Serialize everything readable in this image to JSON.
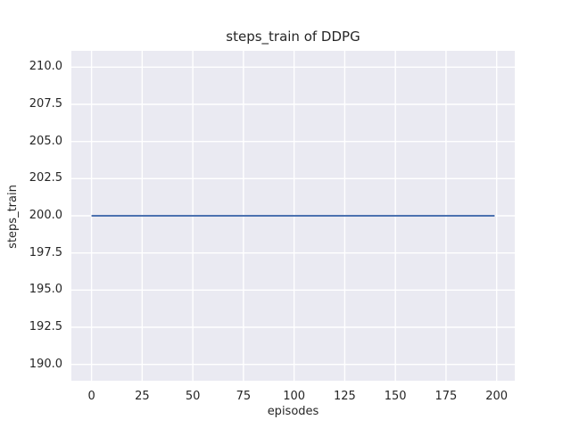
{
  "chart_data": {
    "type": "line",
    "title": "steps_train of DDPG",
    "xlabel": "episodes",
    "ylabel": "steps_train",
    "x_range": [
      -9.95,
      208.95
    ],
    "y_range": [
      188.9,
      211.1
    ],
    "xticks": {
      "values": [
        0,
        25,
        50,
        75,
        100,
        125,
        150,
        175,
        200
      ],
      "labels": [
        "0",
        "25",
        "50",
        "75",
        "100",
        "125",
        "150",
        "175",
        "200"
      ]
    },
    "yticks": {
      "values": [
        190.0,
        192.5,
        195.0,
        197.5,
        200.0,
        202.5,
        205.0,
        207.5,
        210.0
      ],
      "labels": [
        "190.0",
        "192.5",
        "195.0",
        "197.5",
        "200.0",
        "202.5",
        "205.0",
        "207.5",
        "210.0"
      ]
    },
    "grid": true,
    "legend": false,
    "style": {
      "figure_background": "#ffffff",
      "axes_background": "#eaeaf2",
      "grid_color": "#ffffff",
      "text_color": "#262626",
      "line_color": "#4c72b0"
    },
    "series": [
      {
        "name": "steps_train",
        "color": "#4c72b0",
        "x": [
          0,
          199
        ],
        "y": [
          200,
          200
        ],
        "description": "constant value 200 for every episode from 0 to 199"
      }
    ]
  }
}
